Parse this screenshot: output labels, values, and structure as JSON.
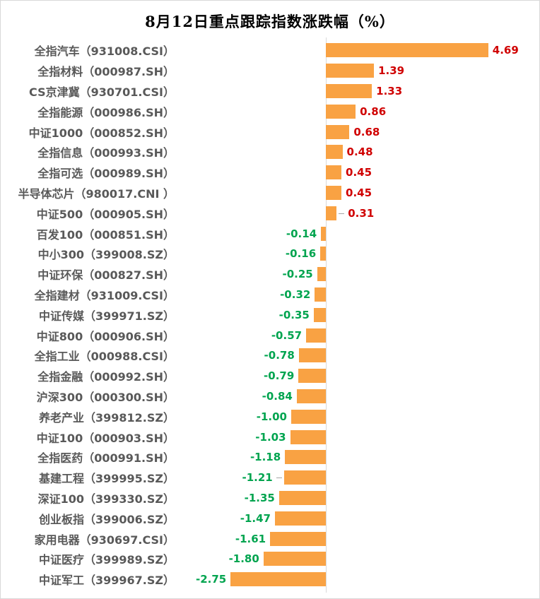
{
  "chart_data": {
    "type": "bar",
    "orientation": "horizontal",
    "title": "8月12日重点跟踪指数涨跌幅（%）",
    "value_unit": "%",
    "xlim": [
      -2.75,
      4.69
    ],
    "grid": false,
    "legend": false,
    "zero_axis_line": true,
    "categories": [
      "全指汽车（931008.CSI）",
      "全指材料（000987.SH）",
      "CS京津冀（930701.CSI）",
      "全指能源（000986.SH）",
      "中证1000（000852.SH）",
      "全指信息（000993.SH）",
      "全指可选（000989.SH）",
      "半导体芯片（980017.CNI ）",
      "中证500（000905.SH）",
      "百发100（000851.SH）",
      "中小300（399008.SZ）",
      "中证环保（000827.SH）",
      "全指建材（931009.CSI）",
      "中证传媒（399971.SZ）",
      "中证800（000906.SH）",
      "全指工业（000988.CSI）",
      "全指金融（000992.SH）",
      "沪深300（000300.SH）",
      "养老产业（399812.SZ）",
      "中证100（000903.SH）",
      "全指医药（000991.SH）",
      "基建工程（399995.SZ）",
      "深证100（399330.SZ）",
      "创业板指（399006.SZ）",
      "家用电器（930697.CSI）",
      "中证医疗（399989.SZ）",
      "中证军工（399967.SZ）"
    ],
    "values": [
      4.69,
      1.39,
      1.33,
      0.86,
      0.68,
      0.48,
      0.45,
      0.45,
      0.31,
      -0.14,
      -0.16,
      -0.25,
      -0.32,
      -0.35,
      -0.57,
      -0.78,
      -0.79,
      -0.84,
      -1.0,
      -1.03,
      -1.18,
      -1.21,
      -1.35,
      -1.47,
      -1.61,
      -1.8,
      -2.75
    ],
    "value_labels": [
      "4.69",
      "1.39",
      "1.33",
      "0.86",
      "0.68",
      "0.48",
      "0.45",
      "0.45",
      "0.31",
      "-0.14",
      "-0.16",
      "-0.25",
      "-0.32",
      "-0.35",
      "-0.57",
      "-0.78",
      "-0.79",
      "-0.84",
      "-1.00",
      "-1.03",
      "-1.18",
      "-1.21",
      "-1.35",
      "-1.47",
      "-1.61",
      "-1.80",
      "-2.75"
    ],
    "leader_line_rows": [
      8,
      21
    ],
    "colors": {
      "bar": "#F9A243",
      "positive_label": "#D00000",
      "negative_label": "#00A44F",
      "category_label": "#595959",
      "axis_line": "#D9D9D9",
      "leader_line": "#A6A6A6",
      "frame_border": "#D9D9D9",
      "background": "#FFFFFF",
      "title": "#000000"
    }
  }
}
